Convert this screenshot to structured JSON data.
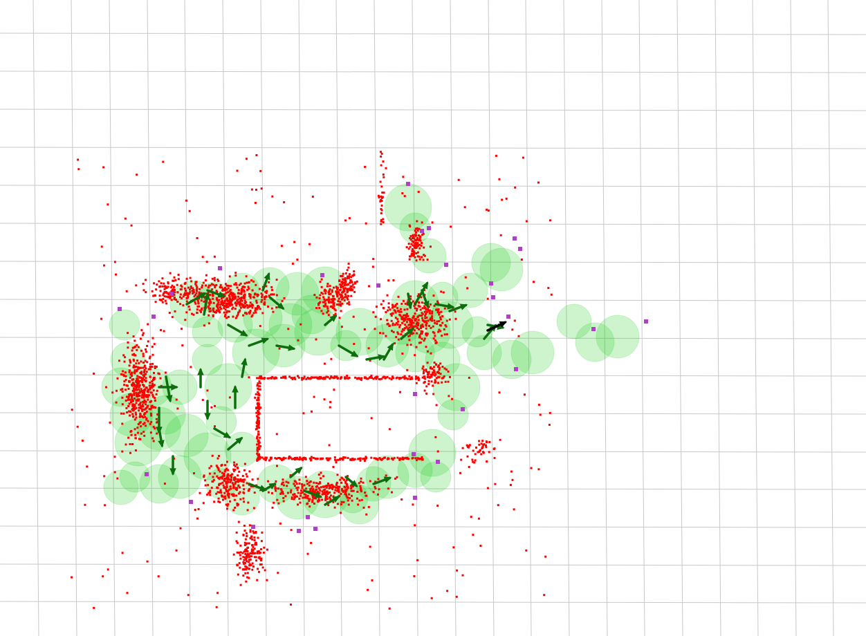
{
  "scene": {
    "background": "#ffffff",
    "grid_color": "#c8c8c8",
    "map_point_color": "#ff0000",
    "landmark_color": "#b040c8",
    "covariance_color": "#22cc22",
    "pose_arrow_color": "#0e6e0e",
    "current_pose_color": "#000000"
  },
  "icons": {
    "pose_arrow": "arrow-icon",
    "covariance_ellipse": "circle-icon",
    "map_point": "square-icon",
    "landmark": "square-icon"
  }
}
